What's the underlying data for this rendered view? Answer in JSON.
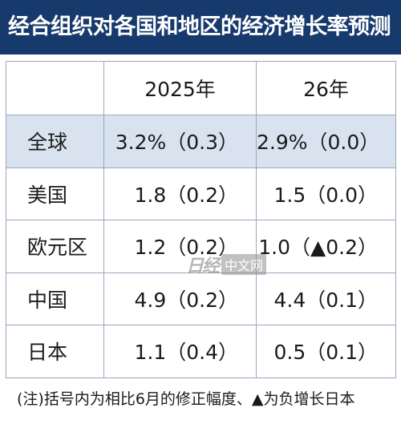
{
  "title": "经合组织对各国和地区的经济增长率预测",
  "table": {
    "headers": [
      "",
      "2025年",
      "26年"
    ],
    "rows": [
      {
        "region": "全球",
        "y2025": "3.2%（0.3）",
        "y2026": "2.9%（0.0）",
        "highlight": true
      },
      {
        "region": "美国",
        "y2025": "1.8（0.2）",
        "y2026": "1.5（0.0）",
        "highlight": false
      },
      {
        "region": "欧元区",
        "y2025": "1.2（0.2）",
        "y2026": "1.0（▲0.2）",
        "highlight": false
      },
      {
        "region": "中国",
        "y2025": "4.9（0.2）",
        "y2026": "4.4（0.1）",
        "highlight": false
      },
      {
        "region": "日本",
        "y2025": "1.1（0.4）",
        "y2026": "0.5（0.1）",
        "highlight": false
      }
    ]
  },
  "watermark": {
    "logo": "日经",
    "label": "中文网"
  },
  "note": "(注)括号内为相比6月的修正幅度、▲为负增长日本",
  "colors": {
    "header_bg": "#173a6d",
    "highlight_row": "#d9e3f0",
    "border": "#9aa7bd"
  }
}
